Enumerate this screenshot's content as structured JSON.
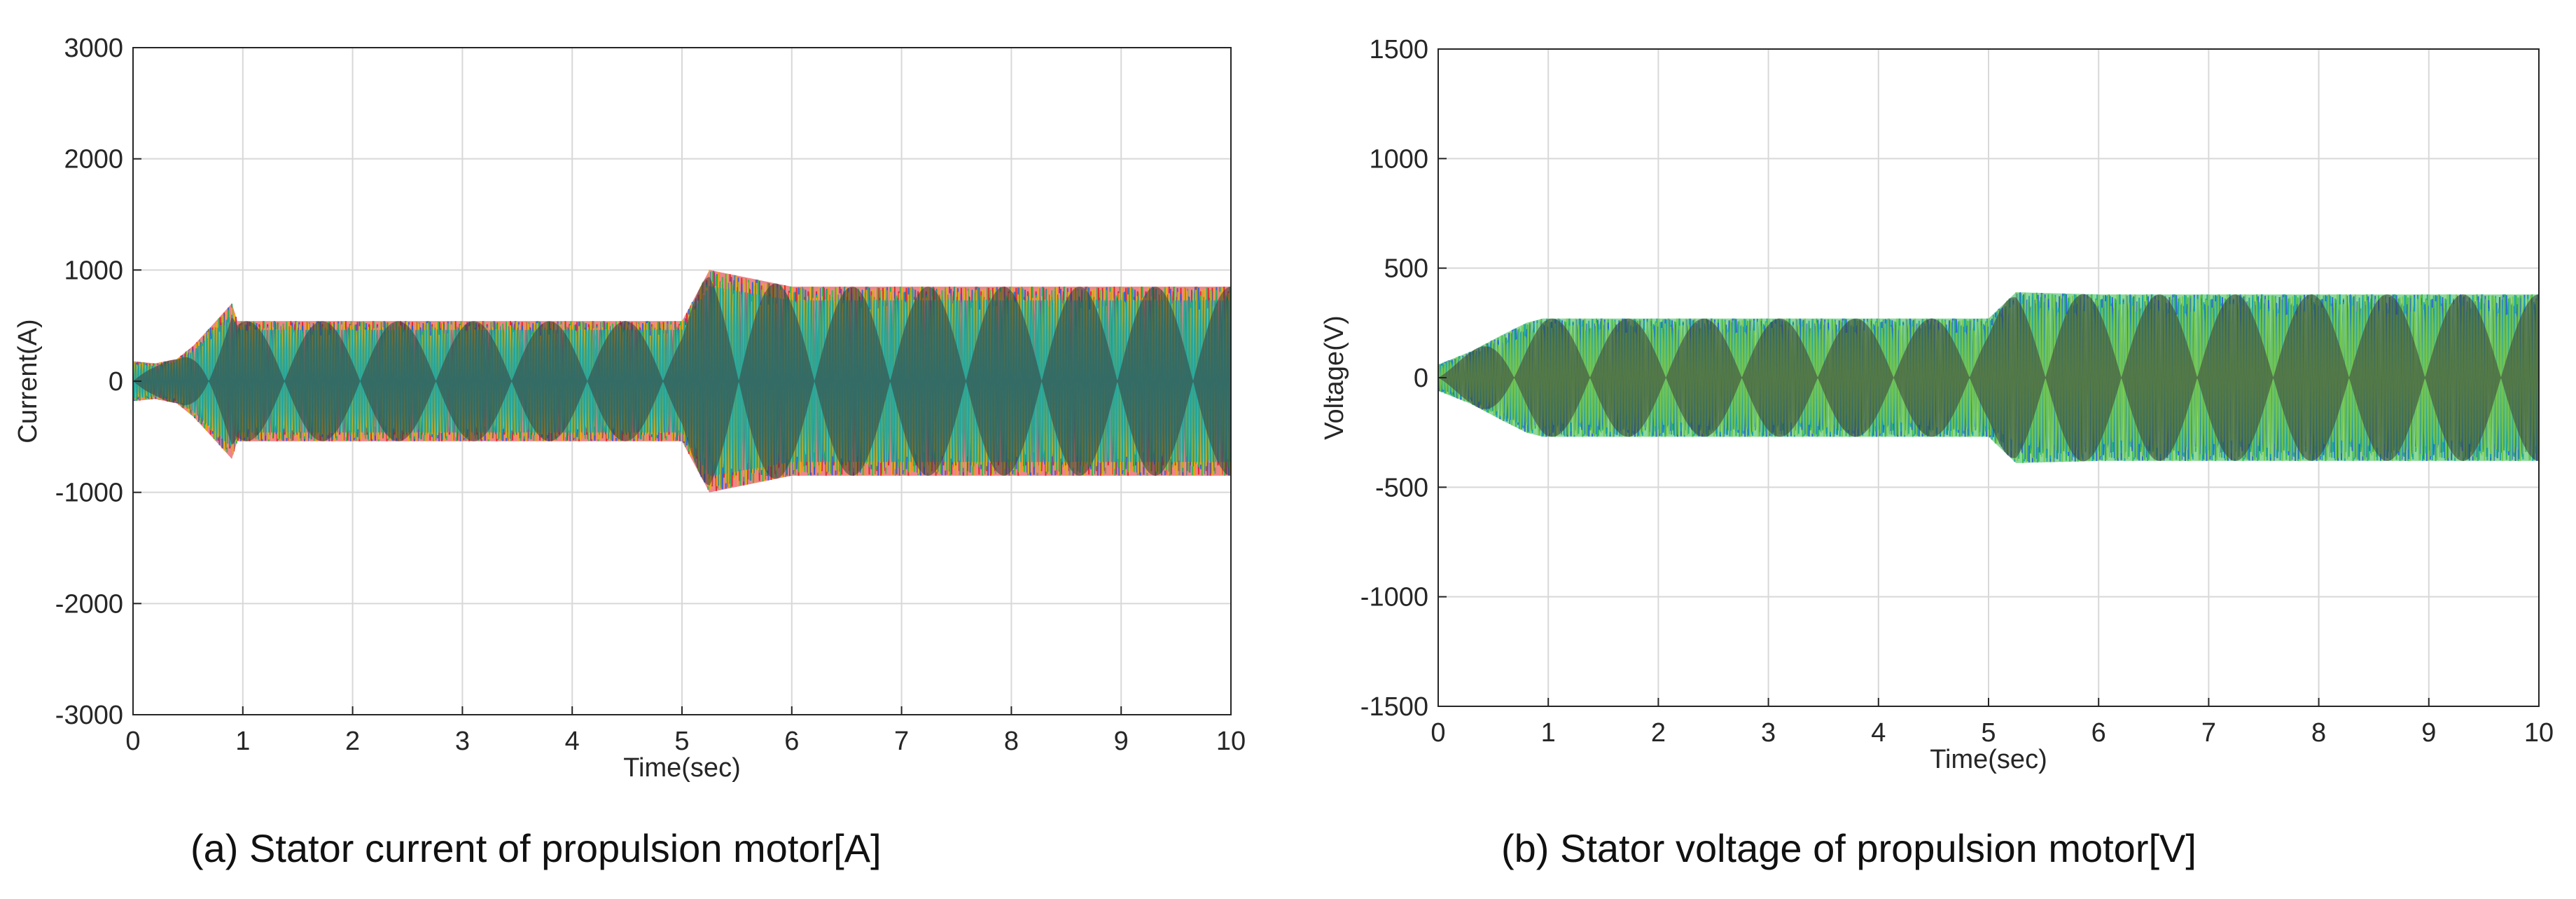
{
  "chart_data": [
    {
      "type": "line",
      "caption": "(a) Stator current of propulsion motor[A]",
      "xlabel": "Time(sec)",
      "ylabel": "Current(A)",
      "xlim": [
        0,
        10
      ],
      "ylim": [
        -3000,
        3000
      ],
      "xticks": [
        0,
        1,
        2,
        3,
        4,
        5,
        6,
        7,
        8,
        9,
        10
      ],
      "yticks": [
        -3000,
        -2000,
        -1000,
        0,
        1000,
        2000,
        3000
      ],
      "grid": true,
      "series_colors": [
        "#e0202a",
        "#2a5fd6",
        "#2fb84a",
        "#e8b010",
        "#1aa5a5"
      ],
      "envelope": {
        "t": [
          0,
          0.2,
          0.4,
          0.55,
          0.7,
          0.9,
          0.95,
          1.5,
          4.9,
          5.0,
          5.25,
          6.0,
          10
        ],
        "amplitude": [
          180,
          160,
          200,
          320,
          480,
          700,
          540,
          540,
          540,
          540,
          1000,
          850,
          850
        ]
      }
    },
    {
      "type": "line",
      "caption": "(b) Stator voltage of propulsion motor[V]",
      "xlabel": "Time(sec)",
      "ylabel": "Voltage(V)",
      "xlim": [
        0,
        10
      ],
      "ylim": [
        -1500,
        1500
      ],
      "xticks": [
        0,
        1,
        2,
        3,
        4,
        5,
        6,
        7,
        8,
        9,
        10
      ],
      "yticks": [
        -1500,
        -1000,
        -500,
        0,
        500,
        1000,
        1500
      ],
      "grid": true,
      "series_colors": [
        "#2fb84a",
        "#2a5fd6",
        "#1aa5a5",
        "#7ac84a"
      ],
      "envelope": {
        "t": [
          0,
          0.1,
          0.3,
          0.6,
          0.8,
          0.95,
          1.5,
          4.9,
          5.0,
          5.25,
          6.0,
          10
        ],
        "amplitude": [
          60,
          80,
          120,
          200,
          250,
          270,
          270,
          270,
          270,
          390,
          380,
          380
        ]
      }
    }
  ]
}
